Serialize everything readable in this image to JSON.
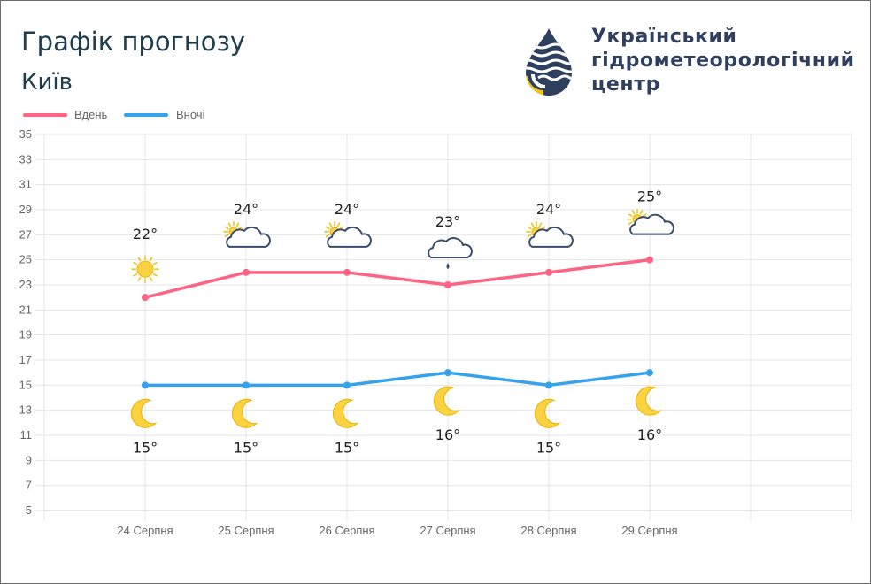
{
  "header": {
    "title": "Графік прогнозу",
    "city": "Київ"
  },
  "logo": {
    "lines": [
      "Український",
      "гідрометеорологічний",
      "центр"
    ],
    "icon": "droplet-wave-logo"
  },
  "legend": {
    "day_label": "Вдень",
    "night_label": "Вночі"
  },
  "colors": {
    "day": "#ff6384",
    "night": "#36a2eb",
    "grid": "#e5e5e5",
    "axis_text": "#666666",
    "temp_text": "#222222",
    "title": "#1f3d4c",
    "logo": "#2f3f5e",
    "logo_accent": "#f2c418"
  },
  "chart_data": {
    "type": "line",
    "categories": [
      "24 Серпня",
      "25 Серпня",
      "26 Серпня",
      "27 Серпня",
      "28 Серпня",
      "29 Серпня"
    ],
    "ylim": [
      5,
      35
    ],
    "yticks": [
      5,
      7,
      9,
      11,
      13,
      15,
      17,
      19,
      21,
      23,
      25,
      27,
      29,
      31,
      33,
      35
    ],
    "grid": true,
    "legend_position": "top-left",
    "series": [
      {
        "name": "Вдень",
        "values": [
          22,
          24,
          24,
          23,
          24,
          25
        ],
        "labels": [
          "22°",
          "24°",
          "24°",
          "23°",
          "24°",
          "25°"
        ],
        "icons": [
          "sun-icon",
          "sun-cloud-icon",
          "sun-cloud-icon",
          "rain-cloud-icon",
          "sun-cloud-icon",
          "sun-cloud-icon"
        ]
      },
      {
        "name": "Вночі",
        "values": [
          15,
          15,
          15,
          16,
          15,
          16
        ],
        "labels": [
          "15°",
          "15°",
          "15°",
          "16°",
          "15°",
          "16°"
        ],
        "icons": [
          "moon-icon",
          "moon-icon",
          "moon-icon",
          "moon-icon",
          "moon-icon",
          "moon-icon"
        ]
      }
    ]
  }
}
